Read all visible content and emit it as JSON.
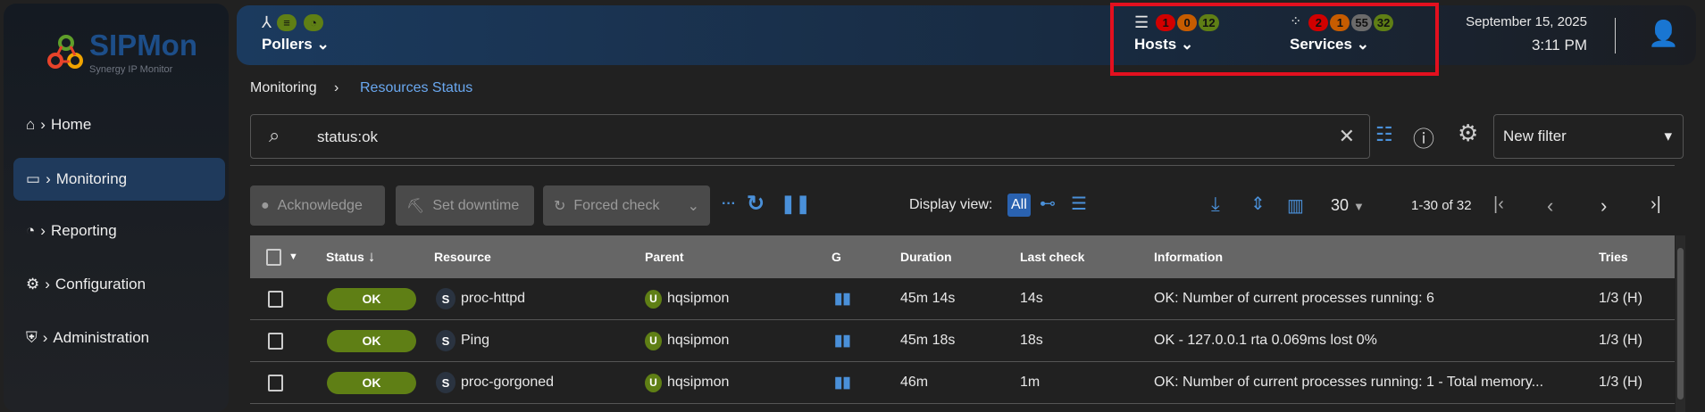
{
  "brand": {
    "name": "SIPMon",
    "subtitle": "Synergy IP Monitor"
  },
  "sidebar": {
    "items": [
      {
        "label": "Home",
        "icon": "home-icon"
      },
      {
        "label": "Monitoring",
        "icon": "monitoring-icon",
        "active": true
      },
      {
        "label": "Reporting",
        "icon": "pie-chart-icon"
      },
      {
        "label": "Configuration",
        "icon": "gear-icon"
      },
      {
        "label": "Administration",
        "icon": "shield-icon"
      }
    ]
  },
  "header": {
    "pollers": {
      "label": "Pollers"
    },
    "hosts": {
      "label": "Hosts",
      "counts": {
        "down": "1",
        "unreachable": "0",
        "up": "12"
      }
    },
    "services": {
      "label": "Services",
      "counts": {
        "critical": "2",
        "warning": "1",
        "unknown": "55",
        "ok": "32"
      }
    },
    "date": "September 15, 2025",
    "time": "3:11 PM",
    "colors": {
      "red": "#d10000",
      "orange": "#c75c00",
      "grey": "#6b6b6b",
      "green": "#5f7f15",
      "highlight": "#e3101f"
    }
  },
  "breadcrumb": [
    "Monitoring",
    "Resources Status"
  ],
  "search": {
    "value": "status:ok"
  },
  "filter": {
    "selected": "New filter"
  },
  "toolbar": {
    "acknowledge": "Acknowledge",
    "set_downtime": "Set downtime",
    "forced_check": "Forced check",
    "display_view_label": "Display view:",
    "display_view_all": "All",
    "page_size": "30",
    "pagination": "1-30 of 32"
  },
  "table": {
    "columns": [
      "Status",
      "Resource",
      "Parent",
      "G",
      "Duration",
      "Last check",
      "Information",
      "Tries"
    ],
    "rows": [
      {
        "status": "OK",
        "type": "S",
        "resource": "proc-httpd",
        "parent_type": "U",
        "parent": "hqsipmon",
        "duration": "45m 14s",
        "last_check": "14s",
        "information": "OK: Number of current processes running: 6",
        "tries": "1/3 (H)"
      },
      {
        "status": "OK",
        "type": "S",
        "resource": "Ping",
        "parent_type": "U",
        "parent": "hqsipmon",
        "duration": "45m 18s",
        "last_check": "18s",
        "information": "OK - 127.0.0.1 rta 0.069ms lost 0%",
        "tries": "1/3 (H)"
      },
      {
        "status": "OK",
        "type": "S",
        "resource": "proc-gorgoned",
        "parent_type": "U",
        "parent": "hqsipmon",
        "duration": "46m",
        "last_check": "1m",
        "information": "OK: Number of current processes running: 1 - Total memory...",
        "tries": "1/3 (H)"
      }
    ]
  }
}
